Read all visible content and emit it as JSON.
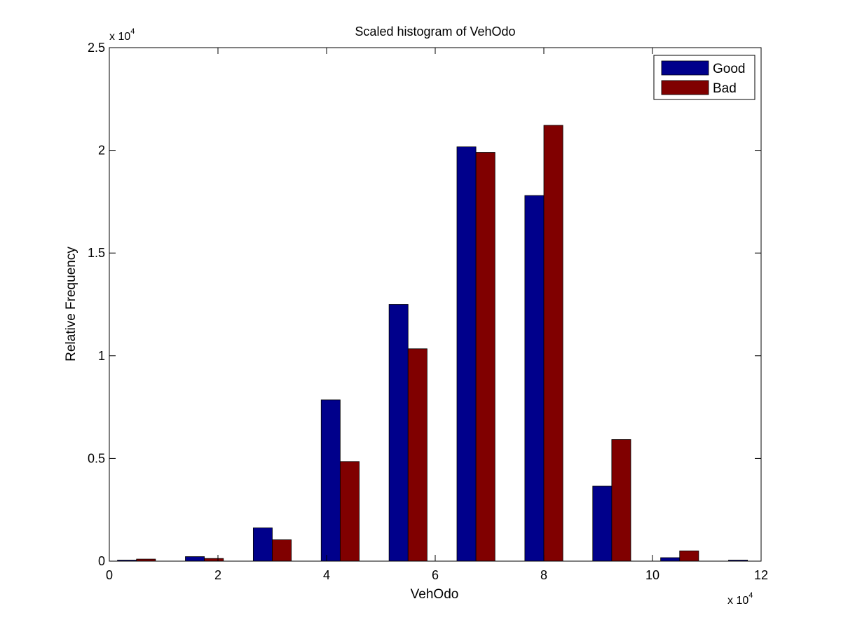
{
  "chart_data": {
    "type": "bar",
    "title": "Scaled histogram of VehOdo",
    "xlabel": "VehOdo",
    "ylabel": "Relative Frequency",
    "x_exponent_label": "x 10",
    "x_exponent_power": "4",
    "y_exponent_label": "x 10",
    "y_exponent_power": "4",
    "xlim": [
      0,
      12
    ],
    "ylim": [
      0,
      2.5
    ],
    "x_ticks": [
      "0",
      "2",
      "4",
      "6",
      "8",
      "10",
      "12"
    ],
    "y_ticks": [
      "0",
      "0.5",
      "1",
      "1.5",
      "2",
      "2.5"
    ],
    "x_tick_values": [
      0,
      2,
      4,
      6,
      8,
      10,
      12
    ],
    "y_tick_values": [
      0,
      0.5,
      1,
      1.5,
      2,
      2.5
    ],
    "bin_centers": [
      0.5,
      1.75,
      3.0,
      4.25,
      5.5,
      6.75,
      8.0,
      9.25,
      10.5,
      11.75
    ],
    "grid": false,
    "legend_position": "top-right",
    "series": [
      {
        "name": "Good",
        "color": "#00008b",
        "values": [
          0.005,
          0.022,
          0.162,
          0.785,
          1.25,
          2.017,
          1.78,
          0.365,
          0.017,
          0.005
        ]
      },
      {
        "name": "Bad",
        "color": "#800000",
        "values": [
          0.01,
          0.013,
          0.104,
          0.485,
          1.034,
          1.99,
          2.122,
          0.592,
          0.05,
          0.0
        ]
      }
    ]
  }
}
